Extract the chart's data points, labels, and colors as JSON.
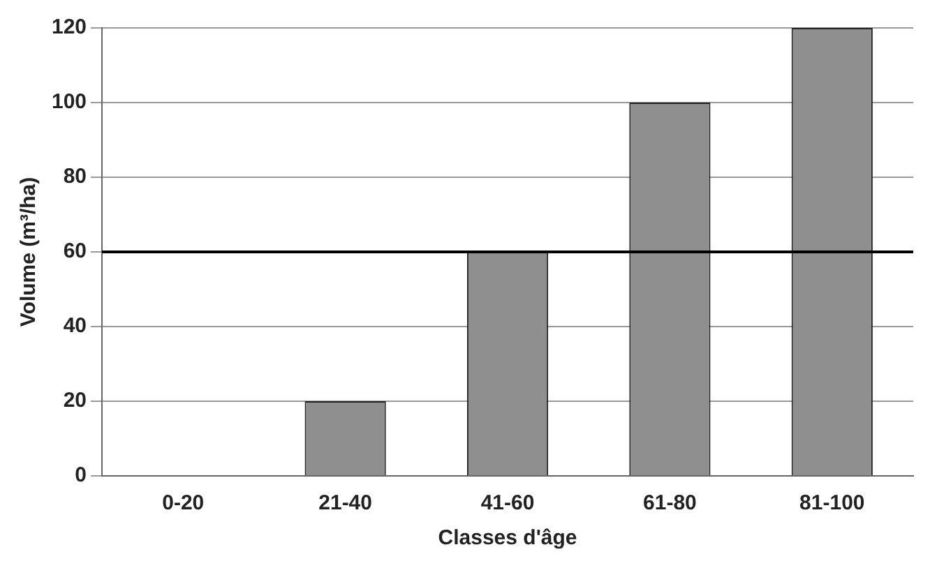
{
  "chart_data": {
    "type": "bar",
    "xlabel": "Classes d'âge",
    "ylabel": "Volume (m³/ha)",
    "categories": [
      "0-20",
      "21-40",
      "41-60",
      "61-80",
      "81-100"
    ],
    "values": [
      0,
      20,
      60,
      100,
      120
    ],
    "color": "#8f8f8f",
    "ylim": [
      0,
      120
    ],
    "yticks": [
      0,
      20,
      40,
      60,
      80,
      100,
      120
    ],
    "grid": "y",
    "ref_lines": [
      {
        "axis": "y",
        "value": 60,
        "color": "#000000"
      }
    ]
  }
}
